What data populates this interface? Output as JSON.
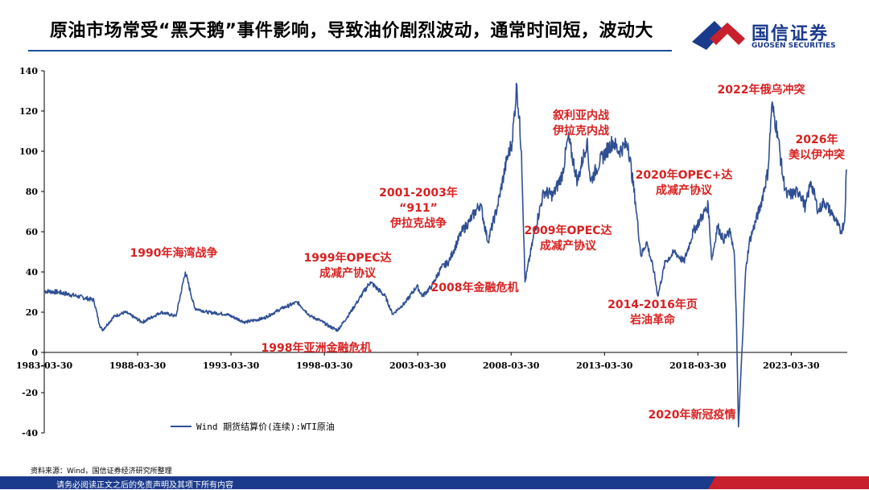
{
  "title": "原油市场常受“黑天鹅”事件影响，导致油价剧烈波动，通常时间短，波动大",
  "logo": {
    "name_cn": "国信证券",
    "name_en": "GUOSEN SECURITIES",
    "colors": {
      "blue": "#1a3a8c",
      "red": "#c8202d"
    }
  },
  "source": "资料来源：Wind，国信证券经济研究所整理",
  "disclaimer": "请务必阅读正文之后的免责声明及其项下所有内容",
  "chart_data": {
    "type": "line",
    "title": "",
    "xlabel": "",
    "ylabel": "",
    "ylim": [
      -40,
      140
    ],
    "yticks": [
      -40,
      -20,
      0,
      20,
      40,
      60,
      80,
      100,
      120,
      140
    ],
    "xlim": [
      "1983-03-30",
      "2026-03-30"
    ],
    "xtick_labels": [
      "1983-03-30",
      "1988-03-30",
      "1993-03-30",
      "1998-03-30",
      "2003-03-30",
      "2008-03-30",
      "2013-03-30",
      "2018-03-30",
      "2023-03-30"
    ],
    "grid": false,
    "legend_position": "bottom-left",
    "colors": {
      "line": "#2f4f93",
      "annotation": "#d92121"
    },
    "series": [
      {
        "name": "Wind 期货结算价(连续):WTI原油",
        "x": [
          1983.25,
          1984.0,
          1985.0,
          1985.9,
          1986.2,
          1986.35,
          1987.0,
          1987.6,
          1988.5,
          1989.5,
          1990.3,
          1990.8,
          1991.3,
          1992.0,
          1993.0,
          1994.0,
          1995.0,
          1996.0,
          1996.8,
          1997.5,
          1998.0,
          1998.5,
          1998.95,
          1999.5,
          2000.0,
          2000.7,
          2001.5,
          2001.9,
          2002.6,
          2003.2,
          2003.5,
          2004.0,
          2004.5,
          2004.9,
          2005.6,
          2006.0,
          2006.6,
          2007.0,
          2007.5,
          2008.0,
          2008.3,
          2008.55,
          2008.8,
          2008.99,
          2009.5,
          2010.0,
          2010.5,
          2011.0,
          2011.3,
          2011.8,
          2012.3,
          2012.5,
          2013.0,
          2013.7,
          2014.0,
          2014.5,
          2014.9,
          2015.2,
          2015.5,
          2015.9,
          2016.1,
          2016.5,
          2017.0,
          2017.5,
          2018.0,
          2018.8,
          2018.99,
          2019.3,
          2019.6,
          2020.0,
          2020.2,
          2020.3,
          2020.42,
          2020.8,
          2021.0,
          2021.6,
          2022.0,
          2022.2,
          2022.5,
          2022.8,
          2023.0,
          2023.7,
          2024.0,
          2024.3,
          2024.7,
          2025.0,
          2025.5,
          2025.9,
          2026.1,
          2026.2
        ],
        "y": [
          30.5,
          30,
          28,
          26,
          14,
          11,
          18,
          20,
          15,
          20,
          18,
          40,
          22,
          20,
          19,
          15,
          17,
          22,
          25,
          18,
          16,
          13,
          11,
          18,
          25,
          35,
          28,
          19,
          25,
          33,
          28,
          33,
          42,
          45,
          60,
          65,
          74,
          55,
          72,
          95,
          105,
          133,
          100,
          35,
          60,
          80,
          78,
          89,
          107,
          85,
          105,
          85,
          95,
          105,
          100,
          104,
          75,
          48,
          55,
          40,
          28,
          45,
          50,
          45,
          60,
          73,
          46,
          63,
          56,
          60,
          48,
          20,
          -37,
          40,
          55,
          73,
          90,
          123,
          110,
          87,
          78,
          80,
          72,
          85,
          70,
          75,
          68,
          60,
          65,
          91
        ]
      }
    ],
    "annotations": [
      "1990年海湾战争",
      "1998年亚洲金融危机",
      "1999年OPEC达\n成减产协议",
      "2001-2003年\n“911”\n伊拉克战争",
      "2008年金融危机",
      "叙利亚内战\n伊拉克内战",
      "2009年OPEC达\n成减产协议",
      "2014-2016年页\n岩油革命",
      "2020年OPEC+达\n成减产协议",
      "2020年新冠疫情",
      "2022年俄乌冲突",
      "2026年\n美以伊冲突"
    ]
  }
}
